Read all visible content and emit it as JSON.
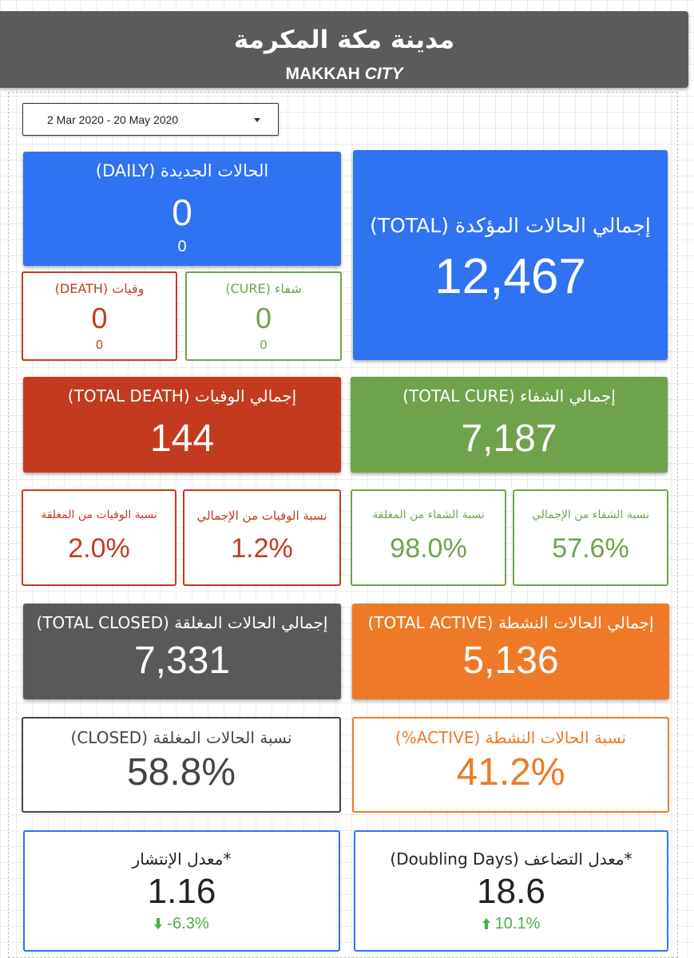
{
  "header": {
    "title_ar": "مدينة مكة المكرمة",
    "title_en_plain": "MAKKAH ",
    "title_en_italic": "CITY"
  },
  "date_range": {
    "label": "2 Mar 2020 - 20 May 2020"
  },
  "colors": {
    "blue": "#2f72f2",
    "red": "#c33a1f",
    "green": "#6fa34b",
    "gray": "#595959",
    "orange": "#ee7a27",
    "arrow_green": "#4cae4c"
  },
  "cards": {
    "total_confirmed": {
      "label": "إجمالي الحالات المؤكدة (TOTAL)",
      "value": "12,467"
    },
    "daily_new": {
      "label": "الحالات الجديدة (DAILY)",
      "value": "0",
      "sub": "0"
    },
    "daily_death": {
      "label": "وفيات (DEATH)",
      "value": "0",
      "sub": "0"
    },
    "daily_cure": {
      "label": "شفاء (CURE)",
      "value": "0",
      "sub": "0"
    },
    "total_death": {
      "label": "إجمالي الوفيات (TOTAL DEATH)",
      "value": "144"
    },
    "total_cure": {
      "label": "إجمالي الشفاء (TOTAL CURE)",
      "value": "7,187"
    },
    "death_of_closed": {
      "label": "نسبة الوفيات من المغلقة",
      "value": "2.0%"
    },
    "death_of_total": {
      "label": "نسبة الوفيات من الإجمالي",
      "value": "1.2%"
    },
    "cure_of_closed": {
      "label": "نسبة الشفاء من المغلقة",
      "value": "98.0%"
    },
    "cure_of_total": {
      "label": "نسبة الشفاء من الإجمالي",
      "value": "57.6%"
    },
    "total_closed": {
      "label": "إجمالي الحالات المغلقة (TOTAL CLOSED)",
      "value": "7,331"
    },
    "total_active": {
      "label": "إجمالي الحالات النشطة (TOTAL ACTIVE)",
      "value": "5,136"
    },
    "closed_pct": {
      "label": "نسبة الحالات المغلقة (CLOSED)",
      "value": "58.8%"
    },
    "active_pct": {
      "label": "نسبة الحالات النشطة (ACTIVE%)",
      "value": "41.2%"
    },
    "spread_rate": {
      "label": "*معدل الإنتشار",
      "value": "1.16",
      "change": "-6.3%",
      "change_direction": "down"
    },
    "doubling_days": {
      "label": "*معدل التضاعف (Doubling Days)",
      "value": "18.6",
      "change": "10.1%",
      "change_direction": "up"
    }
  }
}
